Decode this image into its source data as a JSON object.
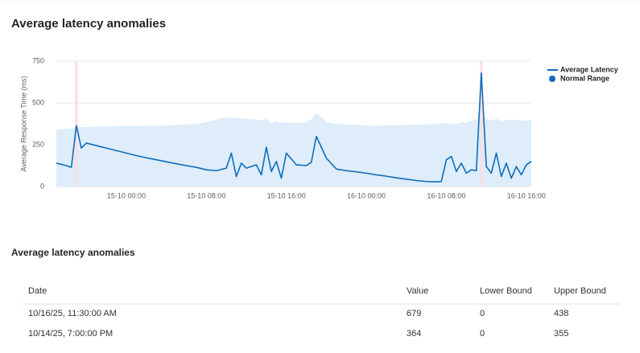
{
  "header": {
    "title": "Average latency anomalies"
  },
  "chart_data": {
    "type": "line",
    "ylabel": "Average Response Time (ms)",
    "x": [
      "14-10 17:00",
      "14-10 18:00",
      "14-10 18:30",
      "14-10 19:00",
      "14-10 19:30",
      "14-10 20:00",
      "14-10 21:00",
      "14-10 22:00",
      "14-10 23:00",
      "15-10 00:00",
      "15-10 01:00",
      "15-10 02:00",
      "15-10 03:00",
      "15-10 04:00",
      "15-10 05:00",
      "15-10 06:00",
      "15-10 07:00",
      "15-10 08:00",
      "15-10 09:00",
      "15-10 10:00",
      "15-10 10:30",
      "15-10 11:00",
      "15-10 11:30",
      "15-10 12:00",
      "15-10 13:00",
      "15-10 13:30",
      "15-10 14:00",
      "15-10 14:30",
      "15-10 15:00",
      "15-10 15:30",
      "15-10 16:00",
      "15-10 17:00",
      "15-10 18:00",
      "15-10 18:30",
      "15-10 19:00",
      "15-10 20:00",
      "15-10 21:00",
      "15-10 22:00",
      "15-10 23:00",
      "16-10 00:00",
      "16-10 01:00",
      "16-10 02:00",
      "16-10 03:00",
      "16-10 04:00",
      "16-10 05:00",
      "16-10 06:00",
      "16-10 07:00",
      "16-10 07:30",
      "16-10 08:00",
      "16-10 08:30",
      "16-10 09:00",
      "16-10 09:30",
      "16-10 10:00",
      "16-10 10:30",
      "16-10 11:00",
      "16-10 11:30",
      "16-10 12:00",
      "16-10 12:30",
      "16-10 13:00",
      "16-10 13:30",
      "16-10 14:00",
      "16-10 14:30",
      "16-10 15:00",
      "16-10 15:30",
      "16-10 16:00",
      "16-10 16:30"
    ],
    "series": [
      {
        "name": "Average Latency",
        "color": "#0f6cbd",
        "values": [
          140,
          125,
          115,
          364,
          230,
          260,
          245,
          230,
          215,
          200,
          185,
          172,
          160,
          148,
          136,
          125,
          115,
          100,
          95,
          110,
          200,
          60,
          140,
          110,
          130,
          70,
          235,
          90,
          150,
          50,
          200,
          130,
          125,
          145,
          300,
          170,
          105,
          95,
          88,
          80,
          70,
          62,
          52,
          44,
          36,
          30,
          28,
          30,
          160,
          180,
          90,
          140,
          80,
          100,
          95,
          679,
          120,
          80,
          200,
          60,
          140,
          50,
          120,
          70,
          130,
          150
        ]
      },
      {
        "name": "Normal Range",
        "color": "#deedf9",
        "legend_color": "#0f6cbd",
        "lower": [
          0,
          0,
          0,
          0,
          0,
          0,
          0,
          0,
          0,
          0,
          0,
          0,
          0,
          0,
          0,
          0,
          0,
          0,
          0,
          0,
          0,
          0,
          0,
          0,
          0,
          0,
          0,
          0,
          0,
          0,
          0,
          0,
          0,
          0,
          0,
          0,
          0,
          0,
          0,
          0,
          0,
          0,
          0,
          0,
          0,
          0,
          0,
          0,
          0,
          0,
          0,
          0,
          0,
          0,
          0,
          0,
          0,
          0,
          0,
          0,
          0,
          0,
          0,
          0,
          0,
          0
        ],
        "upper": [
          340,
          345,
          348,
          355,
          355,
          356,
          358,
          360,
          360,
          362,
          363,
          364,
          365,
          366,
          368,
          370,
          375,
          385,
          400,
          415,
          410,
          412,
          408,
          405,
          400,
          395,
          405,
          380,
          390,
          380,
          385,
          380,
          385,
          400,
          440,
          385,
          375,
          370,
          368,
          365,
          365,
          366,
          367,
          368,
          370,
          372,
          375,
          380,
          380,
          370,
          375,
          385,
          380,
          395,
          400,
          438,
          400,
          395,
          405,
          390,
          400,
          395,
          400,
          395,
          395,
          395
        ]
      }
    ],
    "anomalies": [
      "14-10 19:00",
      "16-10 11:30"
    ],
    "anomaly_color": "#fbdde0",
    "xlim": [
      "14-10 17:00",
      "16-10 16:30"
    ],
    "xticks": [
      "15-10 00:00",
      "15-10 08:00",
      "15-10 16:00",
      "16-10 00:00",
      "16-10 08:00",
      "16-10 16:00"
    ],
    "ylim": [
      0,
      750
    ],
    "yticks": [
      0,
      250,
      500,
      750
    ],
    "grid": true,
    "legend": "right"
  },
  "table": {
    "title": "Average latency anomalies",
    "columns": [
      "Date",
      "Value",
      "Lower Bound",
      "Upper Bound"
    ],
    "rows": [
      [
        "10/16/25, 11:30:00 AM",
        "679",
        "0",
        "438"
      ],
      [
        "10/14/25, 7:00:00 PM",
        "364",
        "0",
        "355"
      ]
    ]
  }
}
